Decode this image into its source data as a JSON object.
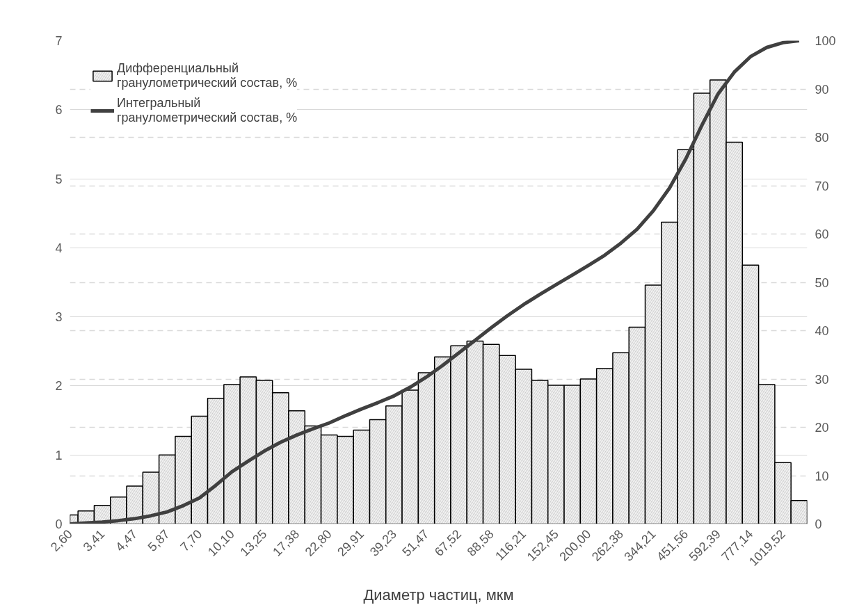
{
  "chart_data": {
    "type": "bar",
    "categories": [
      "2,60",
      null,
      "3,41",
      null,
      "4,47",
      null,
      "5,87",
      null,
      "7,70",
      null,
      "10,10",
      null,
      "13,25",
      null,
      "17,38",
      null,
      "22,80",
      null,
      "29,91",
      null,
      "39,23",
      null,
      "51,47",
      null,
      "67,52",
      null,
      "88,58",
      null,
      "116,21",
      null,
      "152,45",
      null,
      "200,00",
      null,
      "262,38",
      null,
      "344,21",
      null,
      "451,56",
      null,
      "592,39",
      null,
      "777,14",
      null,
      "1019,52",
      null
    ],
    "series": [
      {
        "name": "Дифференциальный гранулометрический состав, %",
        "color": "#c8c8c8",
        "values": [
          0.13,
          0.19,
          0.27,
          0.39,
          0.55,
          0.75,
          1.0,
          1.27,
          1.56,
          1.82,
          2.02,
          2.13,
          2.08,
          1.9,
          1.64,
          1.42,
          1.29,
          1.27,
          1.36,
          1.51,
          1.71,
          1.94,
          2.19,
          2.42,
          2.58,
          2.65,
          2.6,
          2.44,
          2.24,
          2.08,
          2.01,
          2.01,
          2.1,
          2.25,
          2.48,
          2.85,
          3.46,
          4.37,
          5.42,
          6.24,
          6.43,
          5.53,
          3.75,
          2.02,
          0.89,
          0.34
        ]
      },
      {
        "name": "Интегральный гранулометрический состав, %",
        "type": "line",
        "axis": "y2",
        "color": "#404040",
        "values": [
          0,
          0.2,
          0.4,
          0.7,
          1.1,
          1.7,
          2.5,
          3.8,
          5.4,
          8.0,
          10.8,
          13.0,
          15.1,
          16.9,
          18.4,
          19.7,
          20.9,
          22.4,
          23.8,
          25.1,
          26.5,
          28.3,
          30.4,
          32.8,
          35.4,
          38.0,
          40.6,
          43.1,
          45.4,
          47.5,
          49.5,
          51.5,
          53.5,
          55.6,
          58.1,
          61.0,
          64.8,
          69.5,
          75.5,
          82.5,
          89.0,
          93.5,
          96.7,
          98.6,
          99.6,
          100
        ]
      }
    ],
    "xlabel": "Диаметр частиц, мкм",
    "ylim": [
      0,
      7
    ],
    "yticks": [
      0,
      1,
      2,
      3,
      4,
      5,
      6,
      7
    ],
    "y2lim": [
      0,
      100
    ],
    "y2ticks": [
      0,
      10,
      20,
      30,
      40,
      50,
      60,
      70,
      80,
      90,
      100
    ],
    "grid": true,
    "legend": "top left"
  }
}
